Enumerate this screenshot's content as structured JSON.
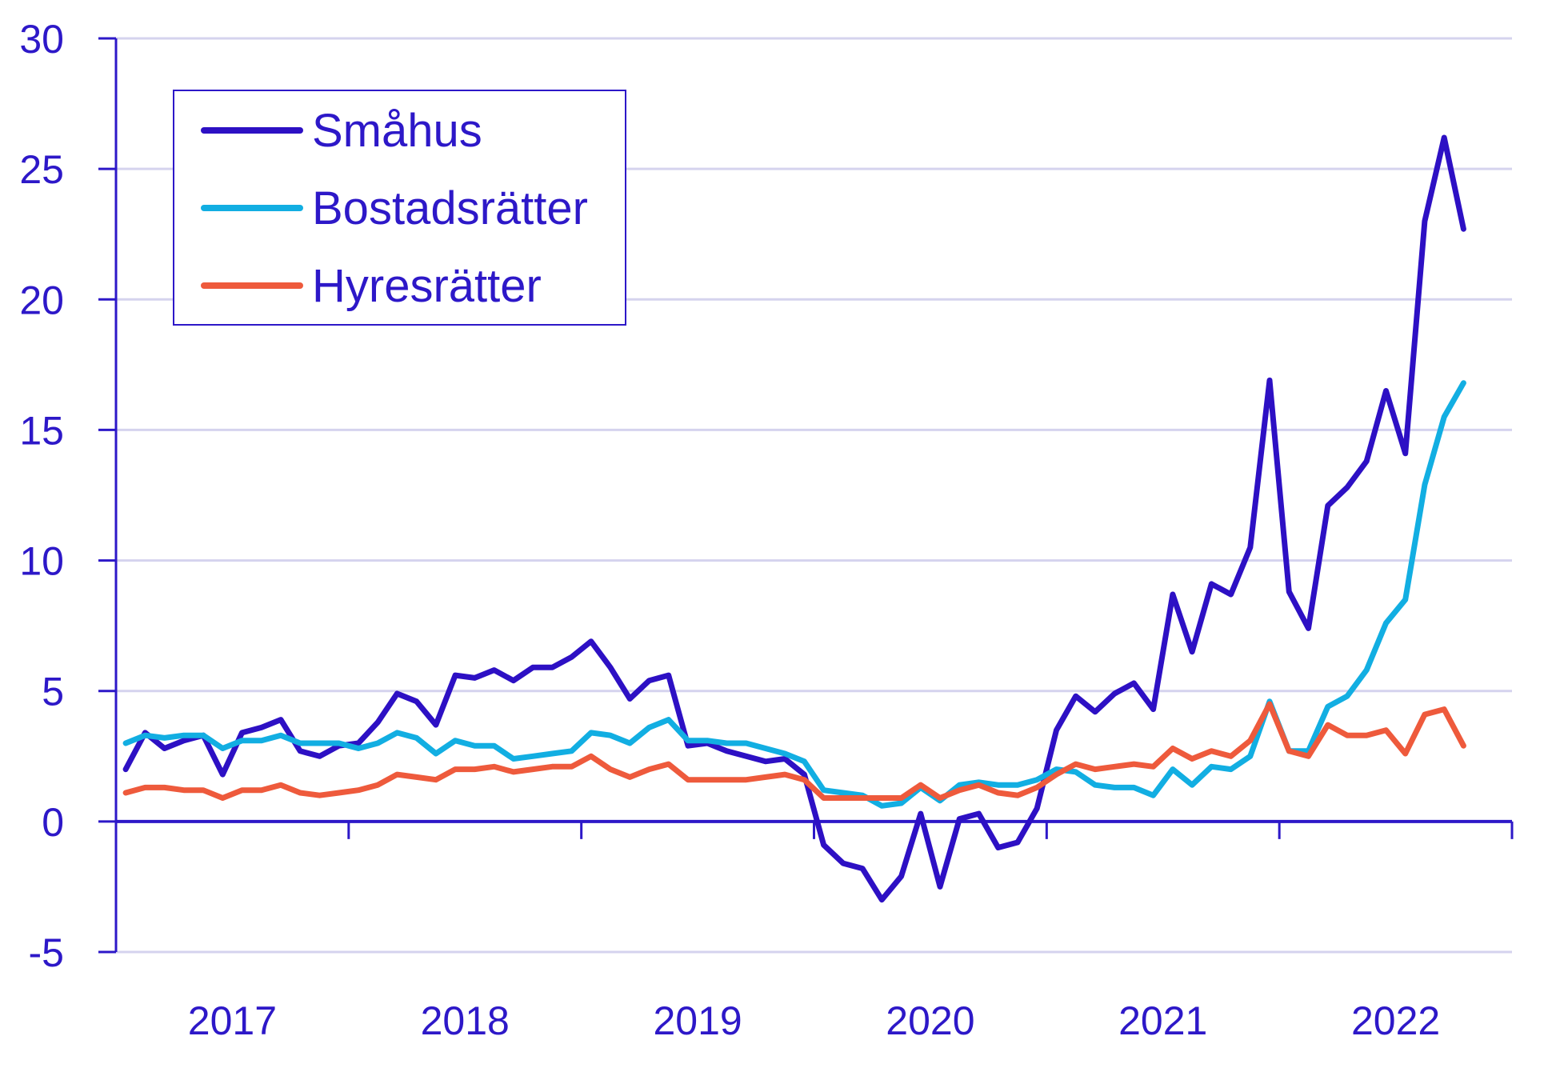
{
  "chart_data": {
    "type": "line",
    "title": "",
    "xlabel": "",
    "ylabel": "",
    "ylim": [
      -5,
      30
    ],
    "y_ticks": [
      -5,
      0,
      5,
      10,
      15,
      20,
      25,
      30
    ],
    "y_tick_labels": [
      "-5",
      "0",
      "5",
      "10",
      "15",
      "20",
      "25",
      "30"
    ],
    "x_tick_labels": [
      "2017",
      "2018",
      "2019",
      "2020",
      "2021",
      "2022"
    ],
    "x_start": "2017-01",
    "grid": true,
    "legend_position": "top-left",
    "colors": {
      "axis": "#2d18c8",
      "grid": "#d5d3ee",
      "text": "#2d18c8"
    },
    "series": [
      {
        "name": "Småhus",
        "color": "#2d10c4",
        "values": [
          2.0,
          3.4,
          2.8,
          3.1,
          3.3,
          1.8,
          3.4,
          3.6,
          3.9,
          2.7,
          2.5,
          2.9,
          3.0,
          3.8,
          4.9,
          4.6,
          3.7,
          5.6,
          5.5,
          5.8,
          5.4,
          5.9,
          5.9,
          6.3,
          6.9,
          5.9,
          4.7,
          5.4,
          5.6,
          2.9,
          3.0,
          2.7,
          2.5,
          2.3,
          2.4,
          1.8,
          -0.9,
          -1.6,
          -1.8,
          -3.0,
          -2.1,
          0.3,
          -2.5,
          0.1,
          0.3,
          -1.0,
          -0.8,
          0.5,
          3.5,
          4.8,
          4.2,
          4.9,
          5.3,
          4.3,
          8.7,
          6.5,
          9.1,
          8.7,
          10.5,
          16.9,
          8.8,
          7.4,
          12.1,
          12.8,
          13.8,
          16.5,
          14.1,
          23.0,
          26.2,
          22.7
        ]
      },
      {
        "name": "Bostadsrätter",
        "color": "#12aee2",
        "values": [
          3.0,
          3.3,
          3.2,
          3.3,
          3.3,
          2.8,
          3.1,
          3.1,
          3.3,
          3.0,
          3.0,
          3.0,
          2.8,
          3.0,
          3.4,
          3.2,
          2.6,
          3.1,
          2.9,
          2.9,
          2.4,
          2.5,
          2.6,
          2.7,
          3.4,
          3.3,
          3.0,
          3.6,
          3.9,
          3.1,
          3.1,
          3.0,
          3.0,
          2.8,
          2.6,
          2.3,
          1.2,
          1.1,
          1.0,
          0.6,
          0.7,
          1.3,
          0.8,
          1.4,
          1.5,
          1.4,
          1.4,
          1.6,
          2.0,
          1.9,
          1.4,
          1.3,
          1.3,
          1.0,
          2.0,
          1.4,
          2.1,
          2.0,
          2.5,
          4.6,
          2.7,
          2.7,
          4.4,
          4.8,
          5.8,
          7.6,
          8.5,
          12.9,
          15.5,
          16.8
        ]
      },
      {
        "name": "Hyresrätter",
        "color": "#ee5a3c",
        "values": [
          1.1,
          1.3,
          1.3,
          1.2,
          1.2,
          0.9,
          1.2,
          1.2,
          1.4,
          1.1,
          1.0,
          1.1,
          1.2,
          1.4,
          1.8,
          1.7,
          1.6,
          2.0,
          2.0,
          2.1,
          1.9,
          2.0,
          2.1,
          2.1,
          2.5,
          2.0,
          1.7,
          2.0,
          2.2,
          1.6,
          1.6,
          1.6,
          1.6,
          1.7,
          1.8,
          1.6,
          0.9,
          0.9,
          0.9,
          0.9,
          0.9,
          1.4,
          0.9,
          1.2,
          1.4,
          1.1,
          1.0,
          1.3,
          1.8,
          2.2,
          2.0,
          2.1,
          2.2,
          2.1,
          2.8,
          2.4,
          2.7,
          2.5,
          3.1,
          4.5,
          2.7,
          2.5,
          3.7,
          3.3,
          3.3,
          3.5,
          2.6,
          4.1,
          4.3,
          2.9
        ]
      }
    ]
  }
}
